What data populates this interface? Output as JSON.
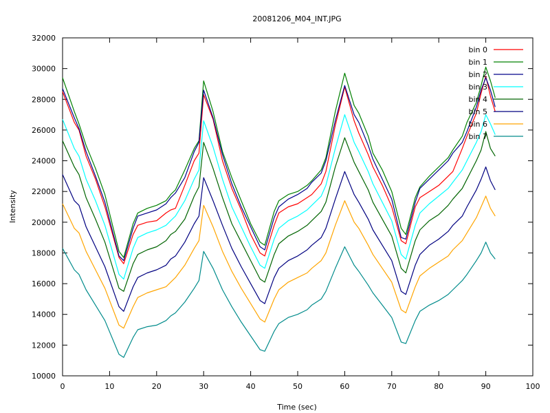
{
  "chart_data": {
    "type": "line",
    "title": "20081206_M04_INT.JPG",
    "xlabel": "Time (sec)",
    "ylabel": "Intensity",
    "xlim": [
      0,
      100
    ],
    "ylim": [
      10000,
      32000
    ],
    "x_ticks": [
      0,
      10,
      20,
      30,
      40,
      50,
      60,
      70,
      80,
      90,
      100
    ],
    "y_ticks": [
      10000,
      12000,
      14000,
      16000,
      18000,
      20000,
      22000,
      24000,
      26000,
      28000,
      30000,
      32000
    ],
    "grid": false,
    "legend_position": "top-right",
    "x": [
      0,
      2.5,
      3.5,
      5,
      7,
      9,
      12,
      13,
      15,
      16,
      18,
      20,
      22,
      23,
      24,
      26,
      28,
      29,
      30,
      32,
      34,
      36,
      38,
      40,
      42,
      43,
      45,
      46,
      48,
      50,
      52,
      53,
      55,
      56,
      58,
      60,
      62,
      63,
      65,
      66,
      68,
      70,
      72,
      73,
      75,
      76,
      78,
      80,
      82,
      83,
      85,
      86,
      88,
      89,
      90,
      91,
      92
    ],
    "series": [
      {
        "name": "bin 0",
        "color": "#ff0000",
        "values": [
          28500,
          26500,
          26000,
          24300,
          22800,
          21000,
          17700,
          17300,
          19200,
          19800,
          20000,
          20100,
          20600,
          20800,
          20900,
          22400,
          24000,
          24500,
          28300,
          26700,
          24000,
          22200,
          20800,
          19200,
          18000,
          17800,
          19800,
          20600,
          21000,
          21200,
          21600,
          21800,
          22500,
          23300,
          26300,
          28800,
          26600,
          25800,
          24400,
          23600,
          22400,
          21000,
          18800,
          18600,
          21000,
          21600,
          22000,
          22400,
          23000,
          23300,
          24800,
          25600,
          27100,
          28400,
          29500,
          28200,
          27200
        ]
      },
      {
        "name": "bin 1",
        "color": "#008000",
        "values": [
          29400,
          27200,
          26400,
          25000,
          23500,
          21800,
          18100,
          17700,
          19900,
          20600,
          20900,
          21100,
          21400,
          21800,
          22100,
          23400,
          24800,
          25300,
          29200,
          27200,
          24600,
          22900,
          21400,
          19900,
          18700,
          18500,
          20700,
          21400,
          21800,
          22000,
          22400,
          22700,
          23400,
          24200,
          27200,
          29700,
          27600,
          27100,
          25600,
          24500,
          23400,
          22000,
          19600,
          19200,
          21600,
          22300,
          23000,
          23600,
          24200,
          24700,
          25600,
          26500,
          27800,
          28900,
          30100,
          29200,
          28100
        ]
      },
      {
        "name": "bin 2",
        "color": "#00008b",
        "values": [
          28700,
          26800,
          26100,
          24600,
          23000,
          21300,
          17800,
          17500,
          19600,
          20400,
          20600,
          20800,
          21200,
          21600,
          21900,
          22900,
          24600,
          25200,
          28600,
          26800,
          24400,
          22500,
          21000,
          19700,
          18400,
          18200,
          20300,
          21000,
          21500,
          21800,
          22200,
          22600,
          23200,
          24000,
          26600,
          28900,
          27000,
          26500,
          25000,
          24100,
          22800,
          21500,
          19000,
          18900,
          21300,
          22200,
          22800,
          23400,
          24000,
          24500,
          25200,
          25900,
          27500,
          28600,
          29400,
          28600,
          27500
        ]
      },
      {
        "name": "bin 3",
        "color": "#00ffff",
        "values": [
          26700,
          24800,
          24300,
          22800,
          21400,
          19800,
          16600,
          16300,
          18300,
          19000,
          19300,
          19500,
          19800,
          20100,
          20400,
          21400,
          22800,
          23400,
          26600,
          24900,
          22800,
          21000,
          19700,
          18400,
          17200,
          17000,
          18900,
          19600,
          20100,
          20400,
          20800,
          21100,
          21700,
          22400,
          24800,
          27000,
          25200,
          24600,
          23300,
          22500,
          21300,
          20100,
          17900,
          17600,
          19800,
          20600,
          21200,
          21700,
          22200,
          22600,
          23400,
          24000,
          25200,
          25900,
          27000,
          26400,
          25700
        ]
      },
      {
        "name": "bin 4",
        "color": "#006400",
        "values": [
          25300,
          23600,
          23100,
          21600,
          20200,
          18700,
          15700,
          15500,
          17300,
          17900,
          18200,
          18400,
          18800,
          19200,
          19400,
          20200,
          21700,
          22300,
          25200,
          23500,
          21600,
          19900,
          18700,
          17500,
          16300,
          16100,
          17900,
          18600,
          19100,
          19400,
          19800,
          20100,
          20700,
          21300,
          23600,
          25500,
          23900,
          23300,
          22100,
          21300,
          20200,
          19100,
          17000,
          16700,
          18800,
          19500,
          20100,
          20500,
          21100,
          21500,
          22200,
          22800,
          24000,
          24700,
          25900,
          24800,
          24300
        ]
      },
      {
        "name": "bin 5",
        "color": "#000080",
        "values": [
          23100,
          21400,
          21100,
          19700,
          18400,
          17100,
          14500,
          14200,
          15800,
          16400,
          16700,
          16900,
          17200,
          17600,
          17800,
          18700,
          19900,
          20400,
          22900,
          21400,
          19800,
          18300,
          17100,
          16000,
          14900,
          14700,
          16400,
          17000,
          17500,
          17800,
          18200,
          18500,
          19000,
          19600,
          21500,
          23300,
          21800,
          21300,
          20200,
          19500,
          18500,
          17500,
          15500,
          15300,
          17200,
          17900,
          18500,
          18900,
          19400,
          19800,
          20400,
          21000,
          22100,
          22800,
          23600,
          22700,
          22100
        ]
      },
      {
        "name": "bin 6",
        "color": "#ffa500",
        "values": [
          21200,
          19600,
          19300,
          18100,
          16900,
          15700,
          13300,
          13100,
          14500,
          15100,
          15400,
          15600,
          15800,
          16100,
          16400,
          17200,
          18300,
          18800,
          21100,
          19700,
          18100,
          16800,
          15700,
          14700,
          13700,
          13500,
          15000,
          15600,
          16100,
          16400,
          16700,
          17000,
          17500,
          18000,
          19800,
          21400,
          20000,
          19600,
          18500,
          17900,
          17000,
          16100,
          14300,
          14100,
          15800,
          16500,
          17000,
          17400,
          17800,
          18200,
          18800,
          19300,
          20300,
          21000,
          21700,
          20900,
          20400
        ]
      },
      {
        "name": "bin 7",
        "color": "#008b8b",
        "values": [
          18300,
          16900,
          16600,
          15600,
          14600,
          13600,
          11400,
          11200,
          12500,
          13000,
          13200,
          13300,
          13600,
          13900,
          14100,
          14800,
          15700,
          16200,
          18100,
          17000,
          15600,
          14500,
          13500,
          12600,
          11700,
          11600,
          12900,
          13400,
          13800,
          14000,
          14300,
          14600,
          15000,
          15500,
          17000,
          18400,
          17200,
          16800,
          15900,
          15400,
          14600,
          13800,
          12200,
          12100,
          13600,
          14200,
          14600,
          14900,
          15300,
          15600,
          16200,
          16600,
          17500,
          18000,
          18700,
          18000,
          17600
        ]
      }
    ]
  }
}
